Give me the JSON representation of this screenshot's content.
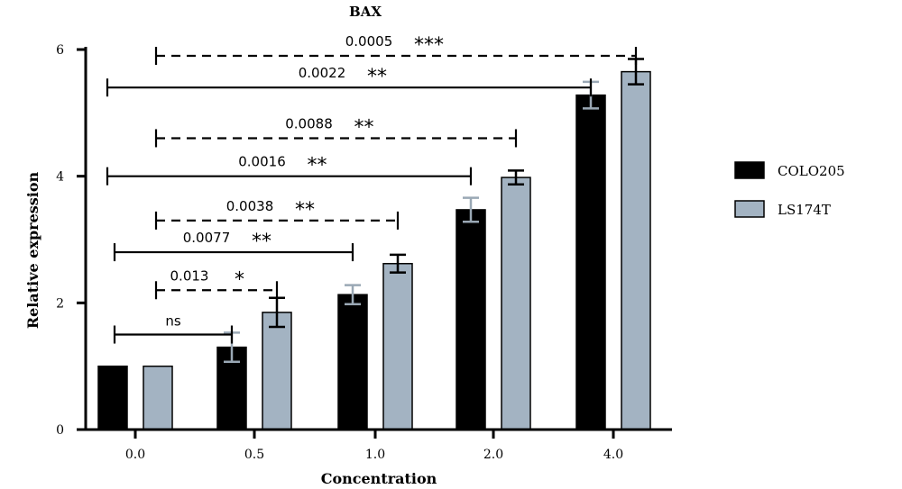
{
  "chart_data": {
    "type": "bar",
    "title": "BAX",
    "xlabel": "Concentration",
    "ylabel": "Relative expression",
    "categories": [
      "0.0",
      "0.5",
      "1.0",
      "2.0",
      "4.0"
    ],
    "ylim": [
      0,
      6
    ],
    "yticks": [
      "0",
      "2",
      "4",
      "6"
    ],
    "legend_position": "right",
    "series": [
      {
        "name": "COLO205",
        "color": "#000000",
        "errorColor": "#000000",
        "values": [
          1.0,
          1.3,
          2.13,
          3.47,
          5.28
        ],
        "errors": [
          0,
          0.23,
          0.15,
          0.19,
          0.21
        ]
      },
      {
        "name": "LS174T",
        "color": "#a3b3c2",
        "errorColor": "#000000",
        "values": [
          1.0,
          1.85,
          2.62,
          3.98,
          5.65
        ],
        "errors": [
          0,
          0.23,
          0.14,
          0.11,
          0.2
        ]
      }
    ],
    "annotations": [
      {
        "p": "0.0005",
        "stars": "***",
        "from": 1,
        "to": 9,
        "y": 5.9,
        "style": "dashed"
      },
      {
        "p": "0.0022",
        "stars": "**",
        "from": 0,
        "to": 8,
        "y": 5.4,
        "style": "solid"
      },
      {
        "p": "0.0088",
        "stars": "**",
        "from": 1,
        "to": 7,
        "y": 4.6,
        "style": "dashed"
      },
      {
        "p": "0.0016",
        "stars": "**",
        "from": 0,
        "to": 6,
        "y": 4.0,
        "style": "solid"
      },
      {
        "p": "0.0038",
        "stars": "**",
        "from": 1,
        "to": 5,
        "y": 3.3,
        "style": "dashed"
      },
      {
        "p": "0.0077",
        "stars": "**",
        "from": 0,
        "to": 4,
        "y": 2.8,
        "style": "solid"
      },
      {
        "p": "0.013",
        "stars": "*",
        "from": 1,
        "to": 3,
        "y": 2.2,
        "style": "dashed"
      },
      {
        "p": "",
        "stars": "ns",
        "from": 0,
        "to": 2,
        "y": 1.5,
        "style": "solid"
      }
    ]
  }
}
